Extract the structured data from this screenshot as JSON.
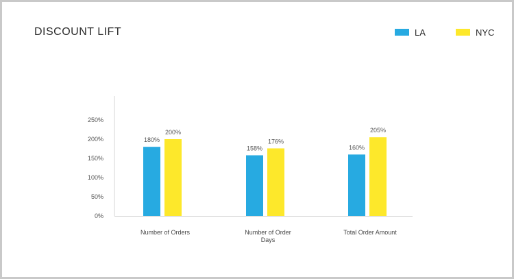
{
  "chart_data": {
    "type": "bar",
    "title": "DISCOUNT LIFT",
    "categories": [
      [
        "Number of Orders"
      ],
      [
        "Number of Order",
        "Days"
      ],
      [
        "Total Order Amount"
      ]
    ],
    "series": [
      {
        "name": "LA",
        "color": "#27aae1",
        "values": [
          180,
          158,
          160
        ],
        "labels": [
          "180%",
          "158%",
          "160%"
        ]
      },
      {
        "name": "NYC",
        "color": "#fde82b",
        "values": [
          200,
          176,
          205
        ],
        "labels": [
          "200%",
          "176%",
          "205%"
        ]
      }
    ],
    "ylim": [
      0,
      250
    ],
    "yticks": [
      0,
      50,
      100,
      150,
      200,
      250
    ],
    "ytick_labels": [
      "0%",
      "50%",
      "100%",
      "150%",
      "200%",
      "250%"
    ],
    "legend_position": "top-right",
    "grid": false
  }
}
